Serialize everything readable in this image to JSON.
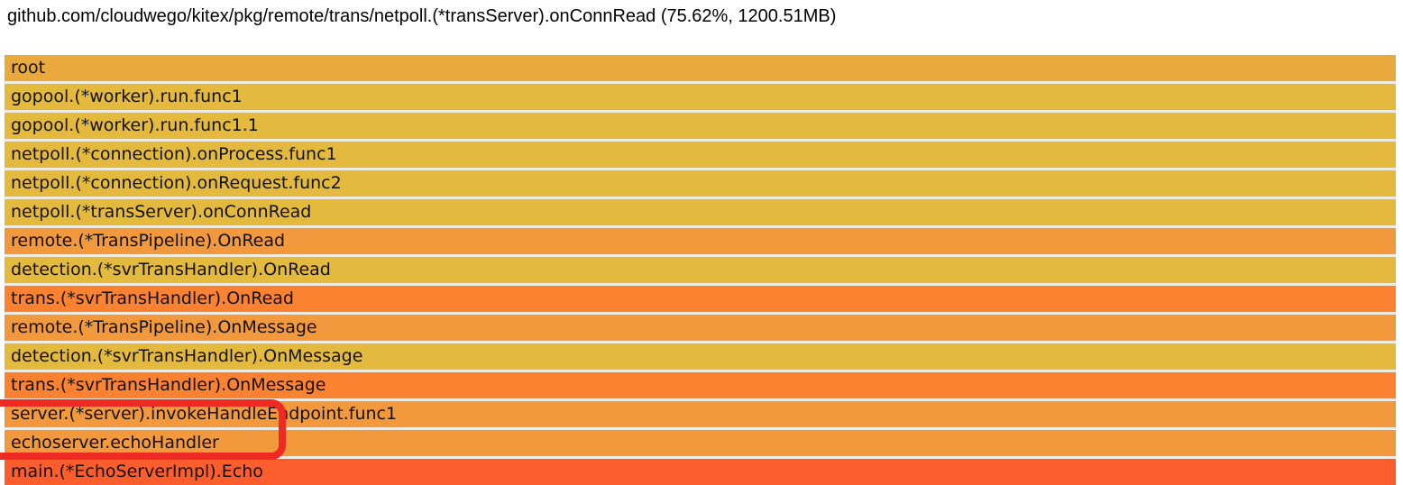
{
  "header": {
    "title": "github.com/cloudwego/kitex/pkg/remote/trans/netpoll.(*transServer).onConnRead (75.62%, 1200.51MB)"
  },
  "flamegraph": {
    "gap_color": "#f0ecdf",
    "text_color": "#111111",
    "frames": [
      {
        "label": "root",
        "color": "#e9a93c"
      },
      {
        "label": "gopool.(*worker).run.func1",
        "color": "#e4ba3e"
      },
      {
        "label": "gopool.(*worker).run.func1.1",
        "color": "#e4ba3e"
      },
      {
        "label": "netpoll.(*connection).onProcess.func1",
        "color": "#e4ba3e"
      },
      {
        "label": "netpoll.(*connection).onRequest.func2",
        "color": "#e4ba3e"
      },
      {
        "label": "netpoll.(*transServer).onConnRead",
        "color": "#e4ba3e"
      },
      {
        "label": "remote.(*TransPipeline).OnRead",
        "color": "#f2993d"
      },
      {
        "label": "detection.(*svrTransHandler).OnRead",
        "color": "#e4ba3e"
      },
      {
        "label": "trans.(*svrTransHandler).OnRead",
        "color": "#fa8231"
      },
      {
        "label": "remote.(*TransPipeline).OnMessage",
        "color": "#f2993d"
      },
      {
        "label": "detection.(*svrTransHandler).OnMessage",
        "color": "#e4ba3e"
      },
      {
        "label": "trans.(*svrTransHandler).OnMessage",
        "color": "#fa8231"
      },
      {
        "label": "server.(*server).invokeHandleEndpoint.func1",
        "color": "#f2993d"
      },
      {
        "label": "echoserver.echoHandler",
        "color": "#f2993d"
      },
      {
        "label": "main.(*EchoServerImpl).Echo",
        "color": "#fc5d2c"
      }
    ]
  },
  "annotation": {
    "color": "#ee2b22",
    "highlighted_frames": [
      "server.(*server).invokeHandleEndpoint.func1",
      "echoserver.echoHandler"
    ]
  },
  "chart_data": {
    "type": "flamegraph",
    "title": "github.com/cloudwego/kitex/pkg/remote/trans/netpoll.(*transServer).onConnRead (75.62%, 1200.51MB)",
    "orientation": "icicle-top-down",
    "unit": "MB",
    "selected_frame": {
      "name": "netpoll.(*transServer).onConnRead",
      "percent": 75.62,
      "value_mb": 1200.51
    },
    "frames": [
      {
        "depth": 0,
        "label": "root",
        "width_pct": 100
      },
      {
        "depth": 1,
        "label": "gopool.(*worker).run.func1",
        "width_pct": 100
      },
      {
        "depth": 2,
        "label": "gopool.(*worker).run.func1.1",
        "width_pct": 100
      },
      {
        "depth": 3,
        "label": "netpoll.(*connection).onProcess.func1",
        "width_pct": 100
      },
      {
        "depth": 4,
        "label": "netpoll.(*connection).onRequest.func2",
        "width_pct": 100
      },
      {
        "depth": 5,
        "label": "netpoll.(*transServer).onConnRead",
        "width_pct": 100
      },
      {
        "depth": 6,
        "label": "remote.(*TransPipeline).OnRead",
        "width_pct": 100
      },
      {
        "depth": 7,
        "label": "detection.(*svrTransHandler).OnRead",
        "width_pct": 100
      },
      {
        "depth": 8,
        "label": "trans.(*svrTransHandler).OnRead",
        "width_pct": 100
      },
      {
        "depth": 9,
        "label": "remote.(*TransPipeline).OnMessage",
        "width_pct": 100
      },
      {
        "depth": 10,
        "label": "detection.(*svrTransHandler).OnMessage",
        "width_pct": 100
      },
      {
        "depth": 11,
        "label": "trans.(*svrTransHandler).OnMessage",
        "width_pct": 100
      },
      {
        "depth": 12,
        "label": "server.(*server).invokeHandleEndpoint.func1",
        "width_pct": 100
      },
      {
        "depth": 13,
        "label": "echoserver.echoHandler",
        "width_pct": 100
      },
      {
        "depth": 14,
        "label": "main.(*EchoServerImpl).Echo",
        "width_pct": 100
      }
    ]
  }
}
